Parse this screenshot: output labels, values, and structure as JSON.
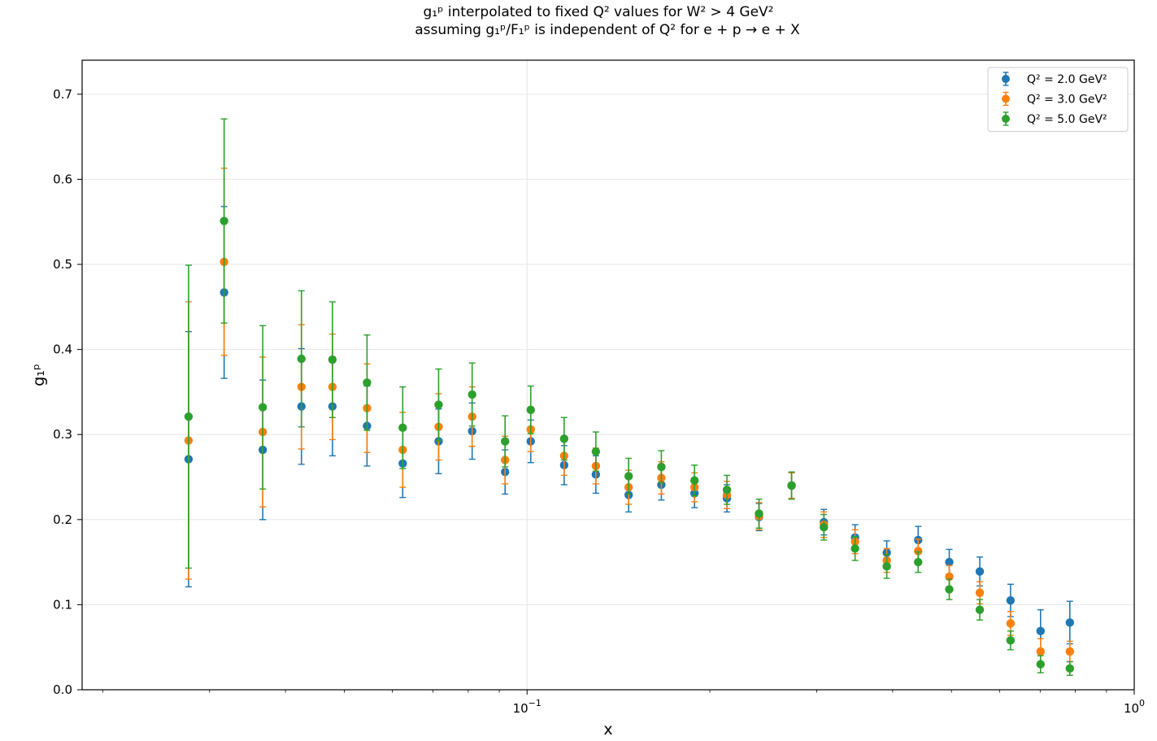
{
  "chart_data": {
    "type": "scatter",
    "title_lines": [
      "g₁ᵖ interpolated to fixed Q² values for W² > 4 GeV²",
      "assuming g₁ᵖ/F₁ᵖ is independent of Q² for e + p → e + X"
    ],
    "xlabel": "x",
    "ylabel": "g₁ᵖ",
    "xscale": "log",
    "xlim": [
      0.0185,
      1.0
    ],
    "ylim": [
      0.0,
      0.74
    ],
    "grid": true,
    "legend_position": "top-right",
    "x_major_ticks": [
      {
        "value": 0.1,
        "base": "10",
        "exp": "−1"
      },
      {
        "value": 1.0,
        "base": "10",
        "exp": "0"
      }
    ],
    "x_minor_ticks": [
      0.02,
      0.03,
      0.04,
      0.05,
      0.06,
      0.07,
      0.08,
      0.09,
      0.2,
      0.3,
      0.4,
      0.5,
      0.6,
      0.7,
      0.8,
      0.9
    ],
    "y_ticks": [
      {
        "value": 0.0,
        "label": "0.0"
      },
      {
        "value": 0.1,
        "label": "0.1"
      },
      {
        "value": 0.2,
        "label": "0.2"
      },
      {
        "value": 0.3,
        "label": "0.3"
      },
      {
        "value": 0.4,
        "label": "0.4"
      },
      {
        "value": 0.5,
        "label": "0.5"
      },
      {
        "value": 0.6,
        "label": "0.6"
      },
      {
        "value": 0.7,
        "label": "0.7"
      }
    ],
    "x": [
      0.0277,
      0.0317,
      0.0367,
      0.0425,
      0.0478,
      0.0545,
      0.0624,
      0.0715,
      0.0812,
      0.092,
      0.1014,
      0.1151,
      0.1298,
      0.147,
      0.1664,
      0.1887,
      0.2134,
      0.241,
      0.2727,
      0.3082,
      0.3469,
      0.3912,
      0.4407,
      0.4959,
      0.5567,
      0.6256,
      0.701,
      0.7833
    ],
    "series": [
      {
        "name": "Q² = 2.0 GeV²",
        "color": "#1f77b4",
        "y": [
          0.271,
          0.467,
          0.282,
          0.333,
          0.333,
          0.31,
          0.266,
          0.292,
          0.304,
          0.256,
          0.292,
          0.264,
          0.253,
          0.229,
          0.241,
          0.231,
          0.225,
          0.203,
          0.24,
          0.197,
          0.179,
          0.161,
          0.176,
          0.15,
          0.139,
          0.105,
          0.069,
          0.079
        ],
        "err": [
          0.15,
          0.101,
          0.082,
          0.068,
          0.058,
          0.047,
          0.04,
          0.038,
          0.033,
          0.026,
          0.025,
          0.023,
          0.022,
          0.02,
          0.018,
          0.017,
          0.016,
          0.016,
          0.015,
          0.015,
          0.015,
          0.014,
          0.016,
          0.015,
          0.017,
          0.019,
          0.025,
          0.025
        ]
      },
      {
        "name": "Q² = 3.0 GeV²",
        "color": "#ff7f0e",
        "y": [
          0.293,
          0.503,
          0.303,
          0.356,
          0.356,
          0.331,
          0.282,
          0.309,
          0.321,
          0.27,
          0.306,
          0.275,
          0.263,
          0.238,
          0.249,
          0.238,
          0.229,
          0.204,
          0.24,
          0.194,
          0.174,
          0.152,
          0.163,
          0.133,
          0.114,
          0.078,
          0.045,
          0.045
        ],
        "err": [
          0.163,
          0.11,
          0.088,
          0.073,
          0.062,
          0.052,
          0.044,
          0.039,
          0.035,
          0.028,
          0.026,
          0.023,
          0.021,
          0.02,
          0.019,
          0.017,
          0.016,
          0.016,
          0.015,
          0.015,
          0.014,
          0.014,
          0.014,
          0.013,
          0.013,
          0.014,
          0.015,
          0.012
        ]
      },
      {
        "name": "Q² = 5.0 GeV²",
        "color": "#2ca02c",
        "y": [
          0.321,
          0.551,
          0.332,
          0.389,
          0.388,
          0.361,
          0.308,
          0.335,
          0.347,
          0.292,
          0.329,
          0.295,
          0.28,
          0.251,
          0.262,
          0.246,
          0.235,
          0.207,
          0.24,
          0.191,
          0.166,
          0.145,
          0.15,
          0.118,
          0.094,
          0.058,
          0.03,
          0.025
        ],
        "err": [
          0.178,
          0.12,
          0.096,
          0.08,
          0.068,
          0.056,
          0.048,
          0.042,
          0.037,
          0.03,
          0.028,
          0.025,
          0.023,
          0.021,
          0.019,
          0.018,
          0.017,
          0.017,
          0.016,
          0.015,
          0.014,
          0.014,
          0.012,
          0.012,
          0.012,
          0.011,
          0.01,
          0.008
        ]
      }
    ]
  }
}
